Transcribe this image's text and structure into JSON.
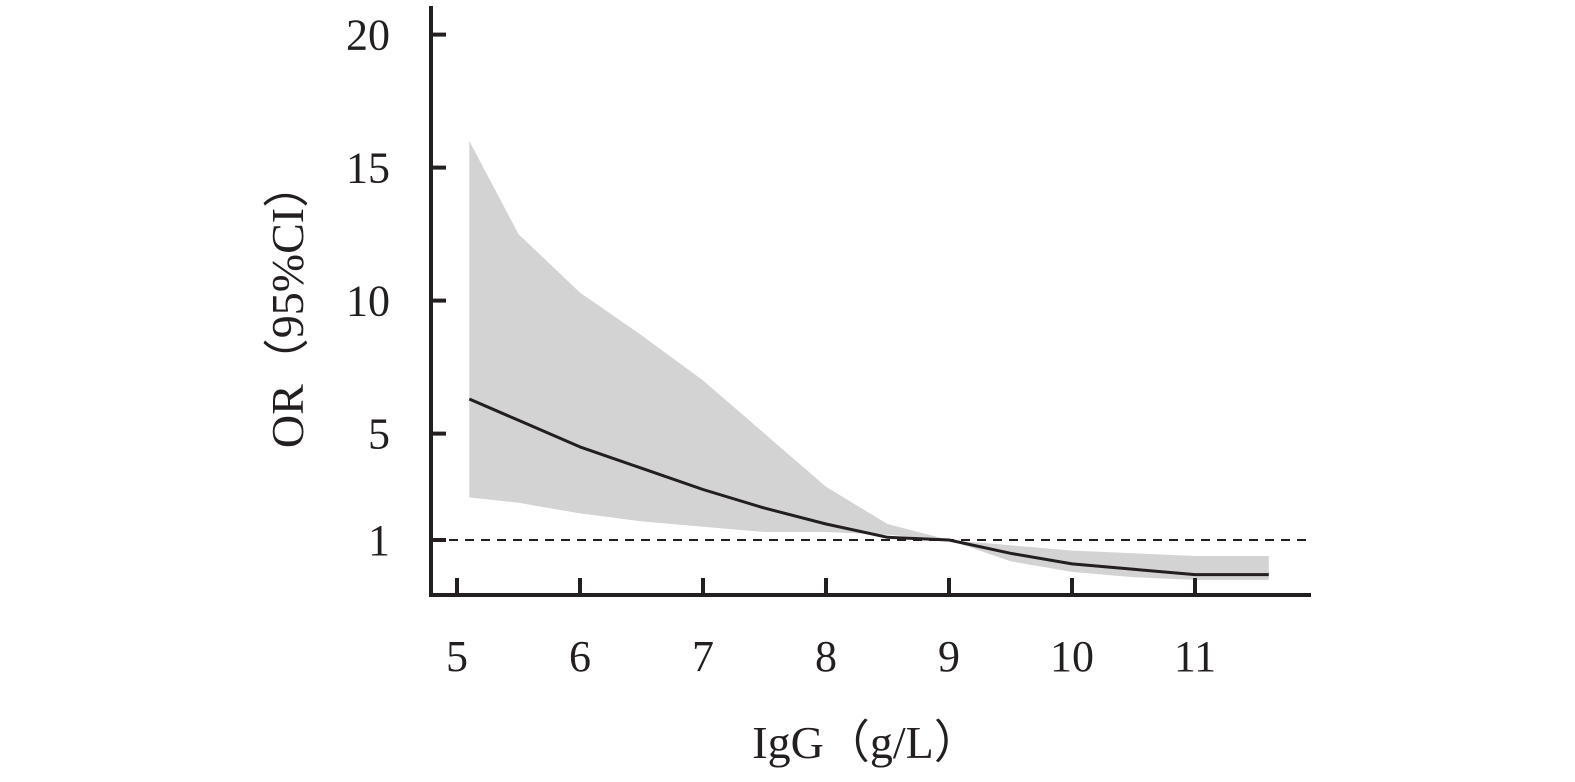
{
  "chart_data": {
    "type": "line",
    "title": "",
    "xlabel": "IgG（g/L）",
    "ylabel": "OR（95%CI）",
    "xlim": [
      4.8,
      11.9
    ],
    "ylim": [
      -1,
      20
    ],
    "x_ticks": [
      5,
      6,
      7,
      8,
      9,
      10,
      11
    ],
    "x_tick_labels": [
      "5",
      "6",
      "7",
      "8",
      "9",
      "10",
      "11"
    ],
    "y_ticks": [
      1,
      5,
      10,
      15,
      20
    ],
    "y_tick_labels": [
      "1",
      "5",
      "10",
      "15",
      "20"
    ],
    "reference_line": {
      "y": 1,
      "style": "dashed"
    },
    "grid": false,
    "colors": {
      "line": "#231f20",
      "band": "#d3d3d3",
      "axis": "#231f20"
    },
    "series": [
      {
        "x": [
          5.1,
          5.5,
          6.0,
          6.5,
          7.0,
          7.5,
          8.0,
          8.5,
          9.0,
          9.5,
          10.0,
          10.5,
          11.0,
          11.6
        ],
        "values": [
          6.3,
          5.5,
          4.5,
          3.7,
          2.9,
          2.2,
          1.6,
          1.1,
          1.0,
          0.5,
          0.1,
          -0.1,
          -0.3,
          -0.3
        ],
        "lower": [
          2.6,
          2.4,
          2.0,
          1.7,
          1.5,
          1.3,
          1.3,
          1.2,
          1.0,
          0.2,
          -0.2,
          -0.4,
          -0.5,
          -0.5
        ],
        "upper": [
          16.0,
          12.5,
          10.3,
          8.7,
          7.0,
          5.0,
          3.0,
          1.6,
          1.0,
          0.8,
          0.6,
          0.5,
          0.4,
          0.4
        ]
      }
    ]
  }
}
